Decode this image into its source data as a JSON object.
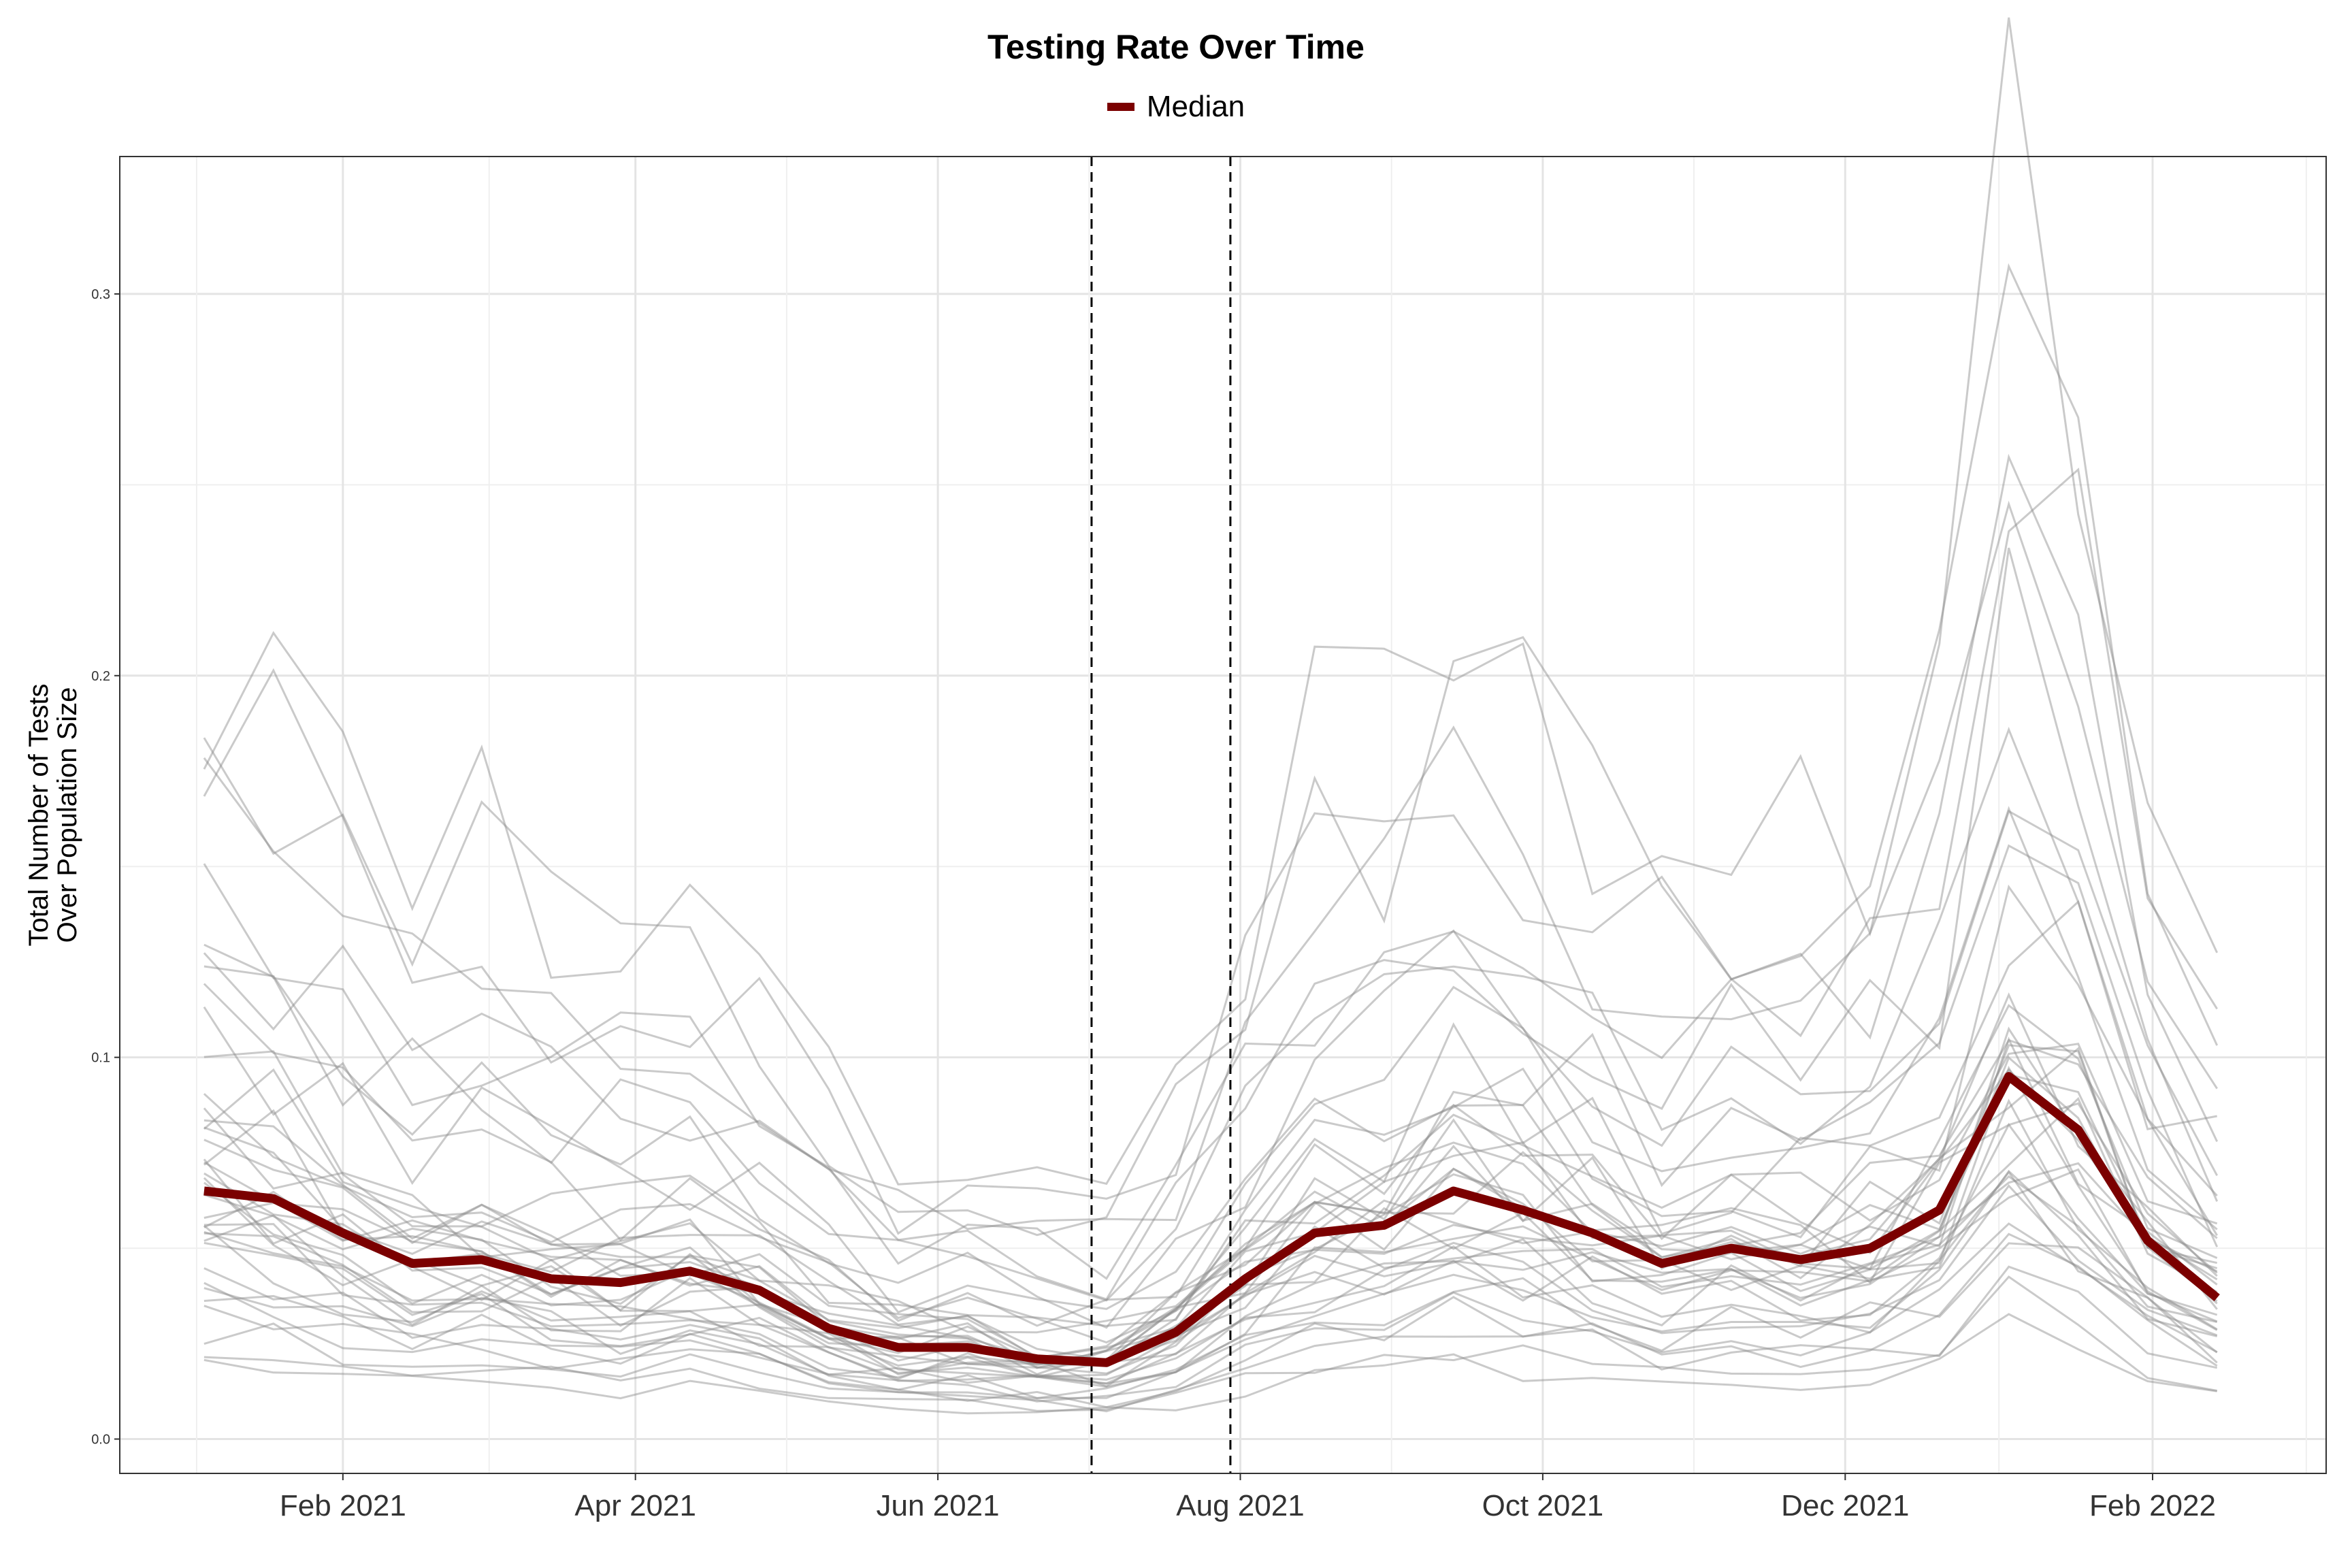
{
  "chart_data": {
    "type": "line",
    "title": "Testing Rate Over Time",
    "ylabel": [
      "Total Number of Tests",
      "Over Population Size"
    ],
    "xlabel": "",
    "xlim": [
      "2020-12-18",
      "2022-03-08"
    ],
    "ylim": [
      -0.009,
      0.336
    ],
    "y_ticks": [
      0.0,
      0.1,
      0.2,
      0.3
    ],
    "y_tick_labels": [
      "0.0",
      "0.1",
      "0.2",
      "0.3"
    ],
    "x_ticks": [
      "2021-02-01",
      "2021-04-01",
      "2021-06-01",
      "2021-08-01",
      "2021-10-01",
      "2021-12-01",
      "2022-02-01"
    ],
    "x_tick_labels": [
      "Feb 2021",
      "Apr 2021",
      "Jun 2021",
      "Aug 2021",
      "Oct 2021",
      "Dec 2021",
      "Feb 2022"
    ],
    "grid": true,
    "legend": "top-center",
    "vlines": [
      "2021-07-02",
      "2021-07-30"
    ],
    "colors": {
      "median": "#7b0000",
      "background_lines": "#8a8a8a",
      "vlines": "#000000"
    },
    "dates": [
      "2021-01-04",
      "2021-01-18",
      "2021-02-01",
      "2021-02-15",
      "2021-03-01",
      "2021-03-15",
      "2021-03-29",
      "2021-04-12",
      "2021-04-26",
      "2021-05-10",
      "2021-05-24",
      "2021-06-07",
      "2021-06-21",
      "2021-07-05",
      "2021-07-19",
      "2021-08-02",
      "2021-08-16",
      "2021-08-30",
      "2021-09-13",
      "2021-09-27",
      "2021-10-11",
      "2021-10-25",
      "2021-11-08",
      "2021-11-22",
      "2021-12-06",
      "2021-12-20",
      "2022-01-03",
      "2022-01-17",
      "2022-01-31",
      "2022-02-14"
    ],
    "series": [
      {
        "name": "Median",
        "values": [
          0.065,
          0.063,
          0.054,
          0.046,
          0.047,
          0.042,
          0.041,
          0.044,
          0.039,
          0.029,
          0.024,
          0.024,
          0.021,
          0.02,
          0.028,
          0.042,
          0.054,
          0.056,
          0.065,
          0.06,
          0.054,
          0.046,
          0.05,
          0.047,
          0.05,
          0.06,
          0.095,
          0.081,
          0.052,
          0.037
        ]
      }
    ]
  }
}
